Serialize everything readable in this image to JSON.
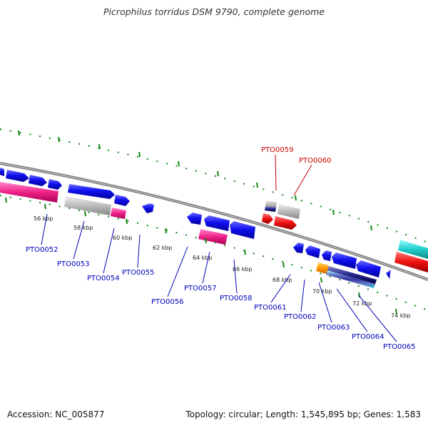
{
  "title": "Picrophilus torridus DSM 9790, complete genome",
  "footer": {
    "accession": "Accession: NC_005877",
    "summary": "Topology: circular; Length: 1,545,895 bp; Genes: 1,583"
  },
  "colors": {
    "forward_gene": "#1010ee",
    "reverse_gene": "#1010ee",
    "pink": "#ee2288",
    "gray": "#b8b8b8",
    "red": "#ee1111",
    "cyan": "#22cccc",
    "orange": "#ff9900",
    "navy": "#222288",
    "tick": "#118811",
    "label_blue": "#0000bb",
    "label_red": "#cc0000"
  },
  "kbp_labels": [
    "56 kbp",
    "58 kbp",
    "60 kbp",
    "62 kbp",
    "64 kbp",
    "66 kbp",
    "68 kbp",
    "70 kbp",
    "72 kbp",
    "74 kbp"
  ],
  "gene_labels": [
    {
      "text": "PTO0052",
      "color": "blue"
    },
    {
      "text": "PTO0053",
      "color": "blue"
    },
    {
      "text": "PTO0054",
      "color": "blue"
    },
    {
      "text": "PTO0055",
      "color": "blue"
    },
    {
      "text": "PTO0056",
      "color": "blue"
    },
    {
      "text": "PTO0057",
      "color": "blue"
    },
    {
      "text": "PTO0058",
      "color": "blue"
    },
    {
      "text": "PTO0059",
      "color": "red"
    },
    {
      "text": "PTO0060",
      "color": "red"
    },
    {
      "text": "PTO0061",
      "color": "blue"
    },
    {
      "text": "PTO0062",
      "color": "blue"
    },
    {
      "text": "PTO0063",
      "color": "blue"
    },
    {
      "text": "PTO0064",
      "color": "blue"
    },
    {
      "text": "PTO0065",
      "color": "blue"
    }
  ]
}
